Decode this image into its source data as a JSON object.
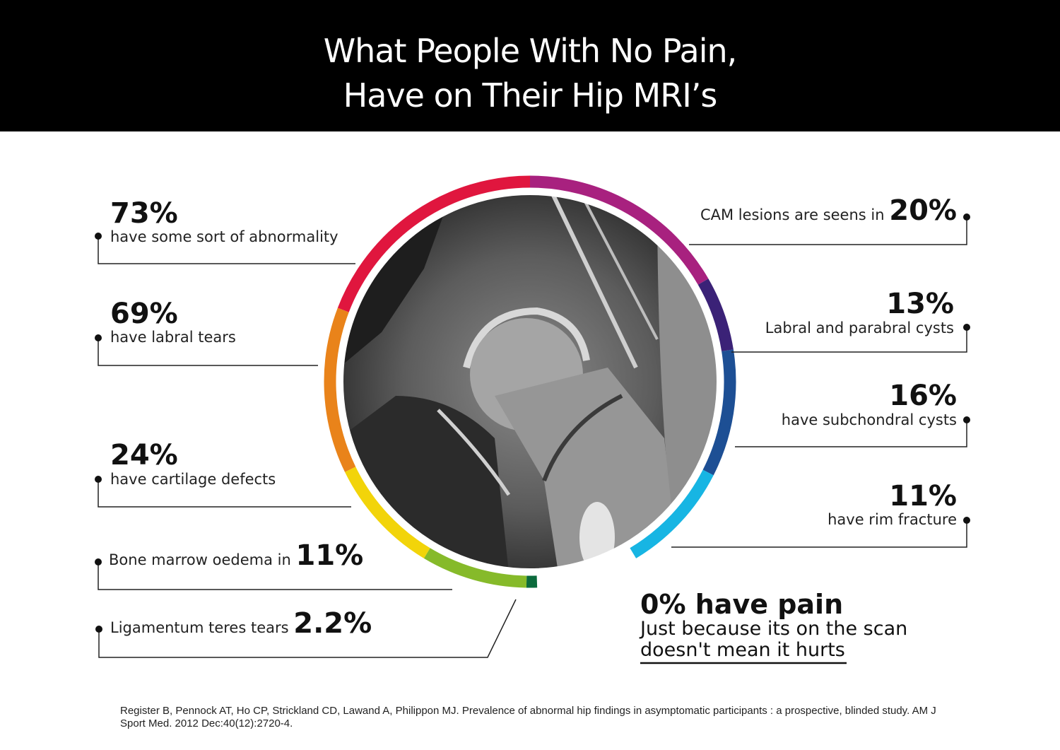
{
  "title": {
    "line1": "What People With No Pain,",
    "line2": "Have on Their Hip MRI’s"
  },
  "stats_left": [
    {
      "id": "abnormality",
      "value": "73%",
      "text": "have some sort of abnormality",
      "color": "#e0163e"
    },
    {
      "id": "labral-tears",
      "value": "69%",
      "text": "have labral tears",
      "color": "#e9831a"
    },
    {
      "id": "cartilage",
      "value": "24%",
      "text": "have cartilage defects",
      "color": "#f2d40a"
    },
    {
      "id": "bone-marrow",
      "value": "11%",
      "text": "Bone marrow oedema in",
      "color": "#86ba2a"
    },
    {
      "id": "ligamentum",
      "value": "2.2%",
      "text": "Ligamentum teres tears",
      "color": "#0b6a3c"
    }
  ],
  "stats_right": [
    {
      "id": "cam",
      "value": "20%",
      "text": "CAM lesions are seens in",
      "color": "#a8217f"
    },
    {
      "id": "cysts",
      "value": "13%",
      "text": "Labral and parabral cysts",
      "color": "#3b2277"
    },
    {
      "id": "subchondral",
      "value": "16%",
      "text": "have subchondral cysts",
      "color": "#1d4f94"
    },
    {
      "id": "rim",
      "value": "11%",
      "text": "have rim fracture",
      "color": "#17b5e3"
    }
  ],
  "pain": {
    "headline": "0% have pain",
    "line1": "Just because its on the scan",
    "line2": "doesn't mean it hurts"
  },
  "citation": "Register B, Pennock AT, Ho CP, Strickland CD, Lawand A, Philippon MJ. Prevalence of abnormal hip findings in asymptomatic participants : a prospective, blinded study. AM J Sport Med. 2012 Dec:40(12):2720-4."
}
